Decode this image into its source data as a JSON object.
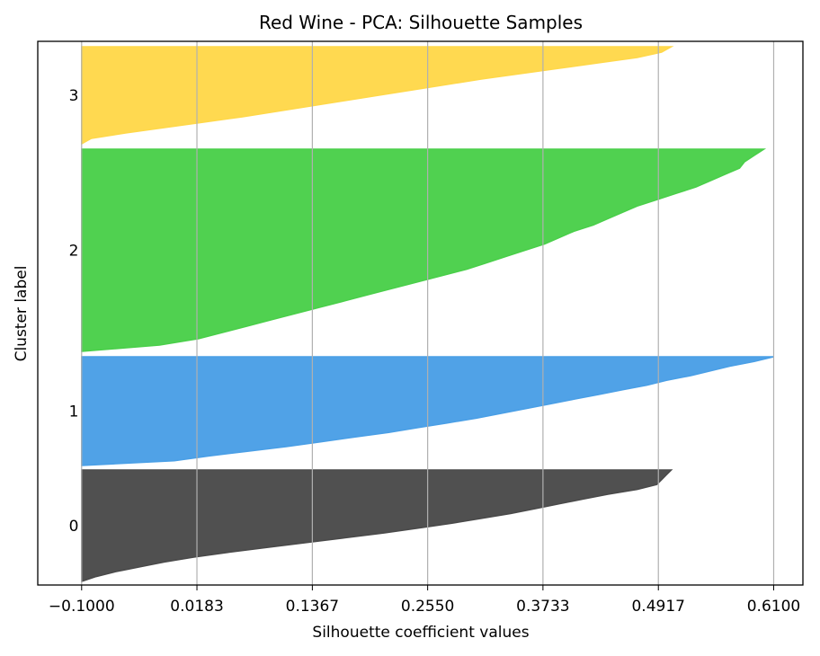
{
  "chart_data": {
    "type": "area",
    "title": "Red Wine - PCA: Silhouette Samples",
    "xlabel": "Silhouette coefficient values",
    "ylabel": "Cluster label",
    "xlim": [
      -0.145,
      0.64
    ],
    "x_ticks": [
      "-0.1000",
      "0.0183",
      "0.1367",
      "0.2550",
      "0.3733",
      "0.4917",
      "0.6100"
    ],
    "x_tick_values": [
      -0.1,
      0.0183,
      0.1367,
      0.255,
      0.3733,
      0.4917,
      0.61
    ],
    "grid": "x",
    "baseline": -0.1,
    "clusters": [
      {
        "label": "0",
        "color": "#4a4a4a",
        "silhouette_sorted_desc": [
          0.505,
          0.5,
          0.495,
          0.49,
          0.47,
          0.44,
          0.415,
          0.39,
          0.365,
          0.34,
          0.31,
          0.28,
          0.245,
          0.21,
          0.17,
          0.13,
          0.09,
          0.05,
          0.015,
          -0.015,
          -0.04,
          -0.065,
          -0.085,
          -0.1
        ]
      },
      {
        "label": "1",
        "color": "#4a9fe6",
        "silhouette_sorted_desc": [
          0.61,
          0.59,
          0.565,
          0.545,
          0.525,
          0.5,
          0.48,
          0.455,
          0.43,
          0.405,
          0.38,
          0.355,
          0.33,
          0.305,
          0.275,
          0.245,
          0.215,
          0.18,
          0.145,
          0.11,
          0.07,
          0.03,
          -0.005,
          -0.1
        ]
      },
      {
        "label": "2",
        "color": "#4acf4a",
        "silhouette_sorted_desc": [
          0.6,
          0.59,
          0.58,
          0.575,
          0.56,
          0.545,
          0.53,
          0.51,
          0.49,
          0.47,
          0.455,
          0.44,
          0.425,
          0.405,
          0.39,
          0.375,
          0.355,
          0.335,
          0.315,
          0.295,
          0.27,
          0.245,
          0.22,
          0.195,
          0.17,
          0.145,
          0.12,
          0.095,
          0.07,
          0.045,
          0.02,
          -0.02,
          -0.1
        ]
      },
      {
        "label": "3",
        "color": "#ffd84a",
        "silhouette_sorted_desc": [
          0.505,
          0.495,
          0.47,
          0.43,
          0.39,
          0.35,
          0.31,
          0.275,
          0.24,
          0.205,
          0.17,
          0.135,
          0.1,
          0.065,
          0.025,
          -0.015,
          -0.055,
          -0.09,
          -0.1
        ]
      }
    ]
  }
}
